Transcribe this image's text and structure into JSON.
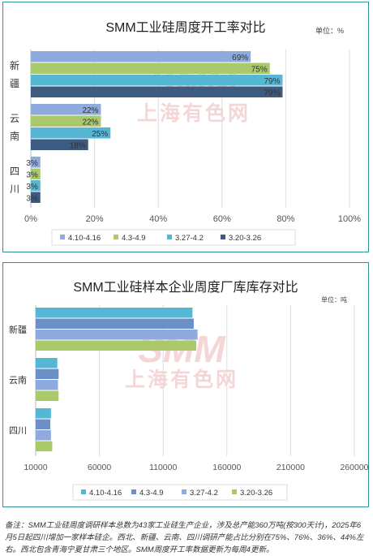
{
  "charts": [
    {
      "title": "SMM工业硅周度开工率对比",
      "unit": "单位：%",
      "chart_data": {
        "type": "bar",
        "orientation": "horizontal",
        "categories": [
          "新疆",
          "云南",
          "四川"
        ],
        "series": [
          {
            "name": "4.10-4.16",
            "values": [
              69,
              22,
              3
            ],
            "color": "#8faadc"
          },
          {
            "name": "4.3-4.9",
            "values": [
              75,
              22,
              3
            ],
            "color": "#a9c96b"
          },
          {
            "name": "3.27-4.2",
            "values": [
              79,
              25,
              3
            ],
            "color": "#56b7d4"
          },
          {
            "name": "3.20-3.26",
            "values": [
              79,
              18,
              3
            ],
            "color": "#3d5a80"
          }
        ],
        "xlim": [
          0,
          100
        ],
        "xticks": [
          "0%",
          "20%",
          "40%",
          "60%",
          "80%",
          "100%"
        ],
        "value_suffix": "%",
        "data_labels": true,
        "grid": true,
        "legend": "bottom"
      }
    },
    {
      "title": "SMM工业硅样本企业周度厂库库存对比",
      "unit": "单位：吨",
      "chart_data": {
        "type": "bar",
        "orientation": "horizontal",
        "categories": [
          "新疆",
          "云南",
          "四川"
        ],
        "series": [
          {
            "name": "4.10-4.16",
            "values": [
              133000,
              27000,
              22000
            ],
            "color": "#56b7d4"
          },
          {
            "name": "4.3-4.9",
            "values": [
              134000,
              28000,
              21500
            ],
            "color": "#6b8fc7"
          },
          {
            "name": "3.27-4.2",
            "values": [
              137000,
              27500,
              22000
            ],
            "color": "#8faadc"
          },
          {
            "name": "3.20-3.26",
            "values": [
              136000,
              28000,
              23000
            ],
            "color": "#a9c96b"
          }
        ],
        "xlim": [
          10000,
          260000
        ],
        "xticks": [
          "10000",
          "60000",
          "110000",
          "160000",
          "210000",
          "260000"
        ],
        "data_labels": false,
        "grid": true,
        "legend": "bottom"
      }
    }
  ],
  "footnote": "备注：SMM工业硅周度调研样本总数为43家工业硅生产企业，涉及总产能360万吨(按300天计)，2025年6月5日起四川增加一家样本硅企。西北、新疆、云南、四川调研产能占比分别在75%、76%、36%、44%左右。西北包含青海宁夏甘肃三个地区。SMM周度开工率数据更新为每周4更新。",
  "watermark": {
    "logo": "SMM",
    "name": "上海有色网"
  }
}
